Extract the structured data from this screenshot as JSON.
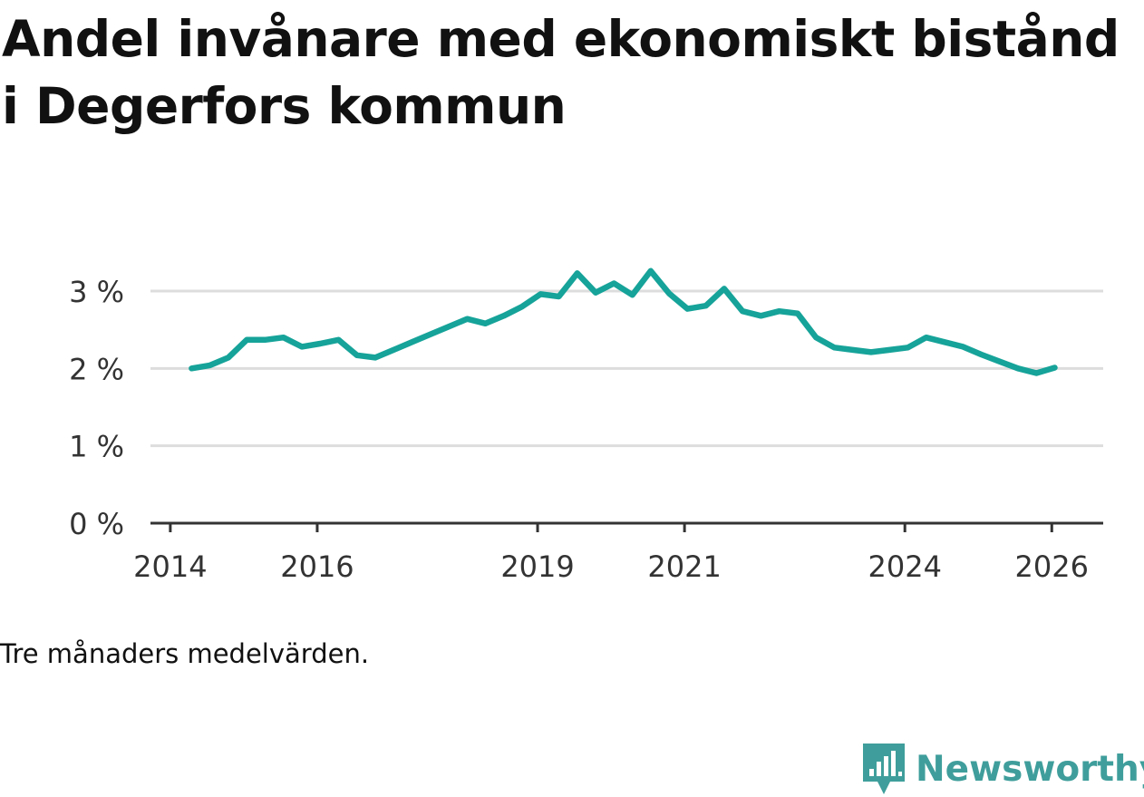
{
  "title": "Andel invånare med ekonomiskt bistånd i Degerfors kommun",
  "note": "Tre månaders medelvärden.",
  "brand": {
    "name": "Newsworthy",
    "icon": "newsworthy-logo-icon",
    "color": "#3f9e9b"
  },
  "colors": {
    "line": "#16a399",
    "grid": "#dddddd",
    "axis": "#333333"
  },
  "chart_data": {
    "type": "line",
    "title": "Andel invånare med ekonomiskt bistånd i Degerfors kommun",
    "xlabel": "",
    "ylabel": "",
    "xlim": [
      2013.73,
      2026.7
    ],
    "ylim": [
      0,
      3
    ],
    "grid": true,
    "legend": "none",
    "x_ticks": [
      2014,
      2016,
      2019,
      2021,
      2024,
      2026
    ],
    "x_tick_labels": [
      "2014",
      "2016",
      "2019",
      "2021",
      "2024",
      "2026"
    ],
    "y_ticks": [
      0,
      1,
      2,
      3
    ],
    "y_tick_labels": [
      "0 %",
      "1 %",
      "2 %",
      "3 %"
    ],
    "series": [
      {
        "name": "Andel invånare med ekonomiskt bistånd",
        "x": [
          2014.29,
          2014.54,
          2014.79,
          2015.04,
          2015.29,
          2015.54,
          2015.79,
          2016.04,
          2016.29,
          2016.54,
          2016.79,
          2017.04,
          2017.29,
          2017.54,
          2017.79,
          2018.04,
          2018.29,
          2018.54,
          2018.79,
          2019.04,
          2019.29,
          2019.54,
          2019.79,
          2020.04,
          2020.29,
          2020.54,
          2020.79,
          2021.04,
          2021.29,
          2021.54,
          2021.79,
          2022.04,
          2022.29,
          2022.54,
          2022.79,
          2023.04,
          2023.29,
          2023.54,
          2023.79,
          2024.04,
          2024.29,
          2024.54,
          2024.79,
          2025.04,
          2025.29,
          2025.54,
          2025.79,
          2026.04
        ],
        "values": [
          2.0,
          2.04,
          2.14,
          2.37,
          2.37,
          2.4,
          2.28,
          2.32,
          2.37,
          2.17,
          2.14,
          2.24,
          2.34,
          2.44,
          2.54,
          2.64,
          2.58,
          2.68,
          2.8,
          2.96,
          2.93,
          3.23,
          2.98,
          3.1,
          2.95,
          3.26,
          2.97,
          2.77,
          2.81,
          3.03,
          2.74,
          2.68,
          2.74,
          2.71,
          2.4,
          2.27,
          2.24,
          2.21,
          2.24,
          2.27,
          2.4,
          2.34,
          2.28,
          2.18,
          2.09,
          2.0,
          1.94,
          2.01
        ]
      }
    ]
  }
}
